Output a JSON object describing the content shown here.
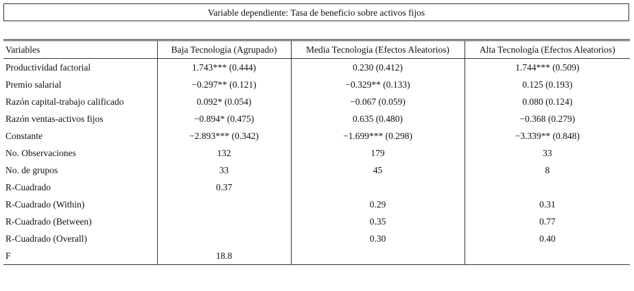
{
  "caption": "Variable dependiente: Tasa de beneficio sobre activos fijos",
  "table": {
    "header": [
      "Variables",
      "Baja Tecnología (Agrupado)",
      "Media Tecnología (Efectos Aleatorios)",
      "Alta Tecnología (Efectos Aleatorios)"
    ],
    "rows": [
      [
        "Productividad factorial",
        "1.743*** (0.444)",
        "0.230 (0.412)",
        "1.744*** (0.509)"
      ],
      [
        "Premio salarial",
        "−0.297** (0.121)",
        "−0.329** (0.133)",
        "0.125 (0.193)"
      ],
      [
        "Razón capital-trabajo calificado",
        "0.092* (0.054)",
        "−0.067 (0.059)",
        "0.080 (0.124)"
      ],
      [
        "Razón ventas-activos fijos",
        "−0.894* (0.475)",
        "0.635 (0.480)",
        "−0.368 (0.279)"
      ],
      [
        "Constante",
        "−2.893*** (0.342)",
        "−1.699*** (0.298)",
        "−3.339** (0.848)"
      ],
      [
        "No. Observaciones",
        "132",
        "179",
        "33"
      ],
      [
        "No. de grupos",
        "33",
        "45",
        "8"
      ],
      [
        "R-Cuadrado",
        "0.37",
        null,
        null
      ],
      [
        "R-Cuadrado (Within)",
        null,
        "0.29",
        "0.31"
      ],
      [
        "R-Cuadrado (Between)",
        null,
        "0.35",
        "0.77"
      ],
      [
        "R-Cuadrado (Overall)",
        null,
        "0.30",
        "0.40"
      ],
      [
        "F",
        "18.8",
        null,
        null
      ]
    ]
  }
}
